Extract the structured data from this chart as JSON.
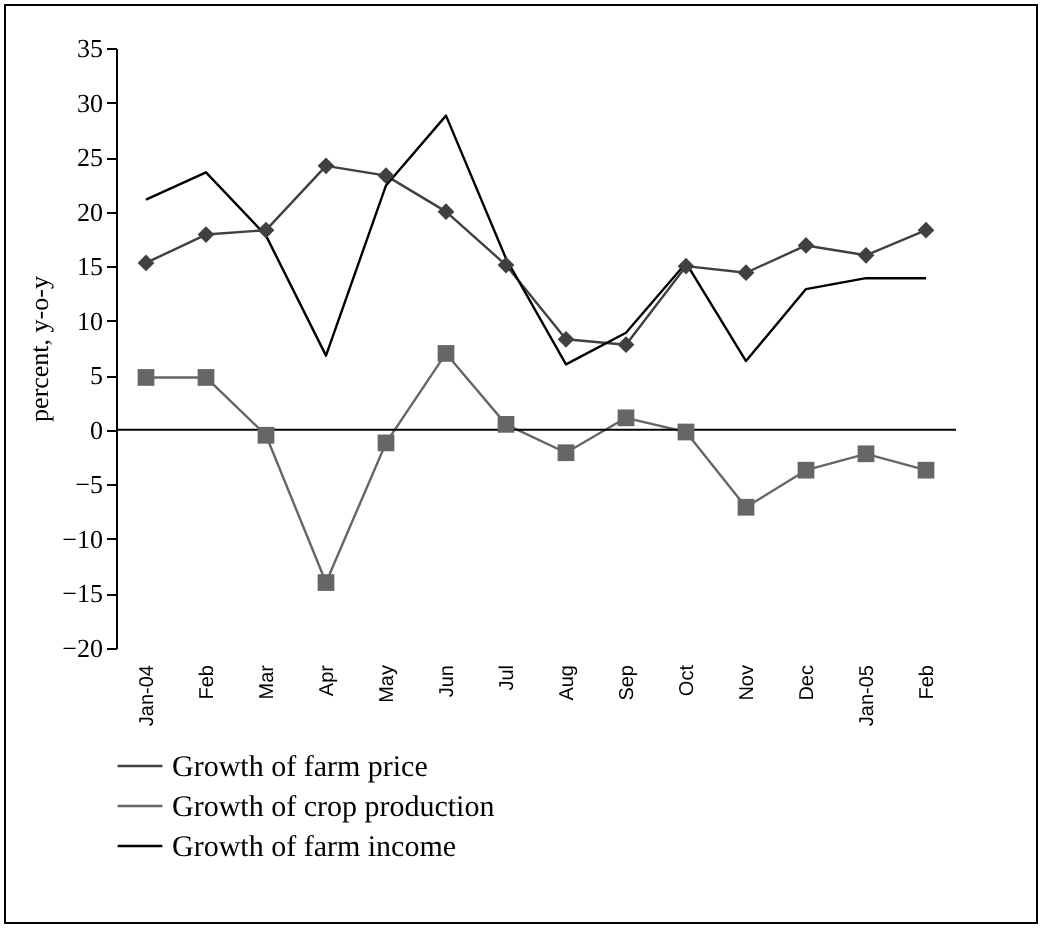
{
  "chart_data": {
    "type": "line",
    "ylabel": "percent, y-o-y",
    "categories": [
      "Jan-04",
      "Feb",
      "Mar",
      "Apr",
      "May",
      "Jun",
      "Jul",
      "Aug",
      "Sep",
      "Oct",
      "Nov",
      "Dec",
      "Jan-05",
      "Feb"
    ],
    "series": [
      {
        "name": "Growth of farm price",
        "color": "#404040",
        "marker": "diamond",
        "values": [
          15.3,
          17.9,
          18.3,
          24.2,
          23.3,
          20.0,
          15.1,
          8.3,
          7.8,
          15.0,
          14.4,
          16.9,
          16.0,
          18.3
        ]
      },
      {
        "name": "Growth of crop production",
        "color": "#666666",
        "marker": "square",
        "values": [
          4.8,
          4.8,
          -0.5,
          -14.0,
          -1.2,
          7.0,
          0.5,
          -2.1,
          1.1,
          -0.2,
          -7.1,
          -3.7,
          -2.2,
          -3.7
        ]
      },
      {
        "name": "Growth of farm income",
        "color": "#000000",
        "marker": "none",
        "values": [
          21.1,
          23.6,
          17.8,
          6.8,
          22.4,
          28.8,
          15.7,
          6.0,
          8.9,
          15.3,
          6.3,
          12.9,
          13.9,
          13.9
        ]
      }
    ],
    "ylim": [
      -20,
      35
    ],
    "yticks": [
      -20,
      -15,
      -10,
      -5,
      0,
      5,
      10,
      15,
      20,
      25,
      30,
      35
    ],
    "ref_lines": [
      {
        "axis": "y",
        "value": 0,
        "label": null
      }
    ],
    "grid": false,
    "legend": "bottom"
  }
}
